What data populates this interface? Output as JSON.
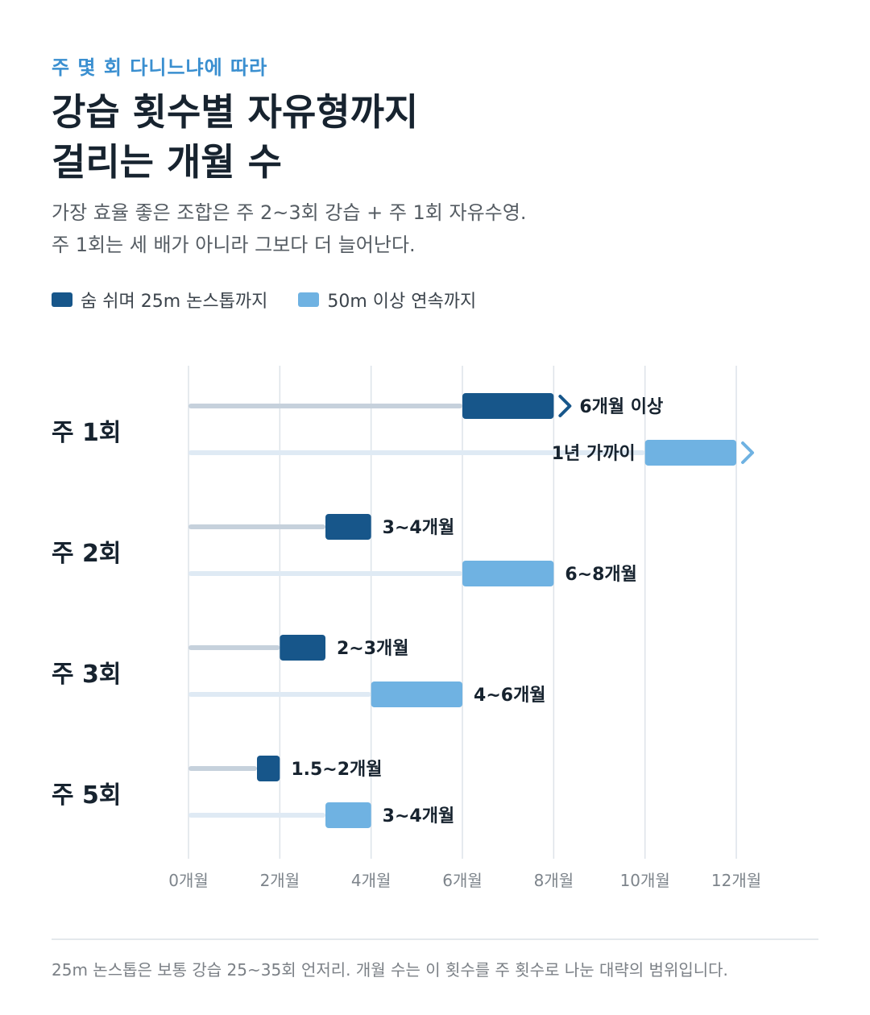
{
  "header": {
    "eyebrow": "주 몇 회 다니느냐에 따라",
    "title_line1": "강습 횟수별 자유형까지",
    "title_line2": "걸리는 개월 수",
    "subtitle_line1": "가장 효율 좋은 조합은 주 2~3회 강습 + 주 1회 자유수영.",
    "subtitle_line2": "주 1회는 세 배가 아니라 그보다 더 늘어난다."
  },
  "footer": {
    "note": "25m 논스톱은 보통 강습 25~35회 언저리. 개월 수는 이 횟수를 주 횟수로 나눈 대략의 범위입니다."
  },
  "chart_data": {
    "type": "range-bar",
    "categories": [
      "주 1회",
      "주 2회",
      "주 3회",
      "주 5회"
    ],
    "x_ticks": [
      "0개월",
      "2개월",
      "4개월",
      "6개월",
      "8개월",
      "10개월",
      "12개월"
    ],
    "xlim": [
      0,
      12
    ],
    "grid": true,
    "legend_position": "top-left",
    "series": [
      {
        "name": "숨 쉬며 25m 논스톱까지",
        "color": "#17568a",
        "track_color": "#c6d1dc",
        "ranges": [
          [
            6,
            8
          ],
          [
            3,
            4
          ],
          [
            2,
            3
          ],
          [
            1.5,
            2
          ]
        ],
        "open_ended": [
          true,
          false,
          false,
          false
        ],
        "labels": [
          "6개월 이상",
          "3~4개월",
          "2~3개월",
          "1.5~2개월"
        ]
      },
      {
        "name": "50m 이상 연속까지",
        "color": "#6fb2e2",
        "track_color": "#dfeaf4",
        "ranges": [
          [
            10,
            12
          ],
          [
            6,
            8
          ],
          [
            4,
            6
          ],
          [
            3,
            4
          ]
        ],
        "open_ended": [
          true,
          false,
          false,
          false
        ],
        "labels": [
          "1년 가까이",
          "6~8개월",
          "4~6개월",
          "3~4개월"
        ]
      }
    ]
  }
}
